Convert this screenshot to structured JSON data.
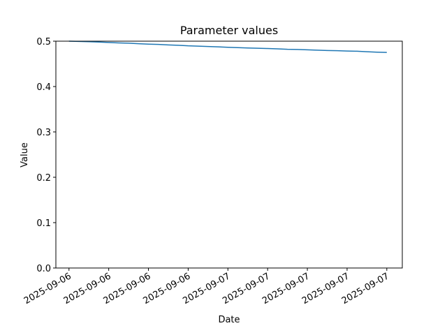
{
  "chart_data": {
    "type": "line",
    "title": "Parameter values",
    "x_label": "Date",
    "y_label": "Value",
    "x": [
      0,
      0.25,
      0.5,
      0.75,
      1,
      1.25,
      1.5,
      1.75,
      2,
      2.25,
      2.5,
      2.75,
      3,
      3.25,
      3.5,
      3.75,
      4,
      4.25,
      4.5,
      4.75,
      5,
      5.25,
      5.5,
      5.75,
      6,
      6.25,
      6.5,
      6.75,
      7,
      7.25,
      7.5,
      7.75,
      8
    ],
    "series": [
      {
        "name": "Value",
        "color": "#1f77b4",
        "values": [
          0.5,
          0.4995,
          0.4988,
          0.498,
          0.4972,
          0.4962,
          0.4955,
          0.4945,
          0.4935,
          0.4928,
          0.4918,
          0.491,
          0.4898,
          0.4891,
          0.4882,
          0.4875,
          0.4866,
          0.4858,
          0.485,
          0.4845,
          0.4838,
          0.4831,
          0.4822,
          0.4818,
          0.481,
          0.4802,
          0.4795,
          0.479,
          0.4782,
          0.4778,
          0.4768,
          0.4758,
          0.4752
        ]
      }
    ],
    "xlim": [
      -0.33,
      8.39
    ],
    "xticks": [
      {
        "value": 0,
        "label": "2025-09-06"
      },
      {
        "value": 1,
        "label": "2025-09-06"
      },
      {
        "value": 2,
        "label": "2025-09-06"
      },
      {
        "value": 3,
        "label": "2025-09-06"
      },
      {
        "value": 4,
        "label": "2025-09-07"
      },
      {
        "value": 5,
        "label": "2025-09-07"
      },
      {
        "value": 6,
        "label": "2025-09-07"
      },
      {
        "value": 7,
        "label": "2025-09-07"
      },
      {
        "value": 8,
        "label": "2025-09-07"
      }
    ],
    "ylim": [
      0,
      0.5
    ],
    "yticks": [
      {
        "value": 0,
        "label": "0.0"
      },
      0.1,
      0.2,
      0.3,
      0.4,
      0.5
    ],
    "grid": false
  }
}
